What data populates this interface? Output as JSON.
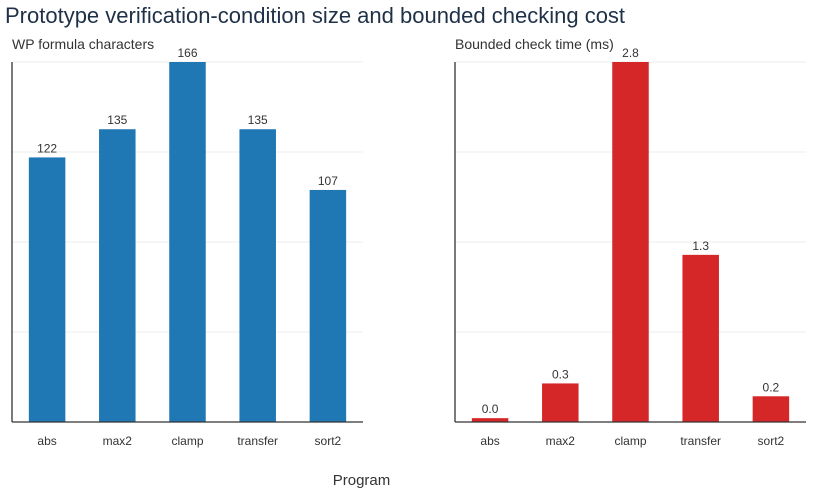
{
  "title": "Prototype verification-condition size and bounded checking cost",
  "xlabel": "Program",
  "chart_data": [
    {
      "type": "bar",
      "title": "WP formula characters",
      "categories": [
        "abs",
        "max2",
        "clamp",
        "transfer",
        "sort2"
      ],
      "values": [
        122,
        135,
        166,
        135,
        107
      ],
      "value_labels": [
        "122",
        "135",
        "166",
        "135",
        "107"
      ],
      "ylim": [
        0,
        166
      ],
      "grid": true,
      "color": "#1f77b4"
    },
    {
      "type": "bar",
      "title": "Bounded check time (ms)",
      "categories": [
        "abs",
        "max2",
        "clamp",
        "transfer",
        "sort2"
      ],
      "values": [
        0.03,
        0.3,
        2.8,
        1.3,
        0.2
      ],
      "value_labels": [
        "0.0",
        "0.3",
        "2.8",
        "1.3",
        "0.2"
      ],
      "ylim": [
        0,
        2.8
      ],
      "grid": true,
      "color": "#d62728"
    }
  ]
}
